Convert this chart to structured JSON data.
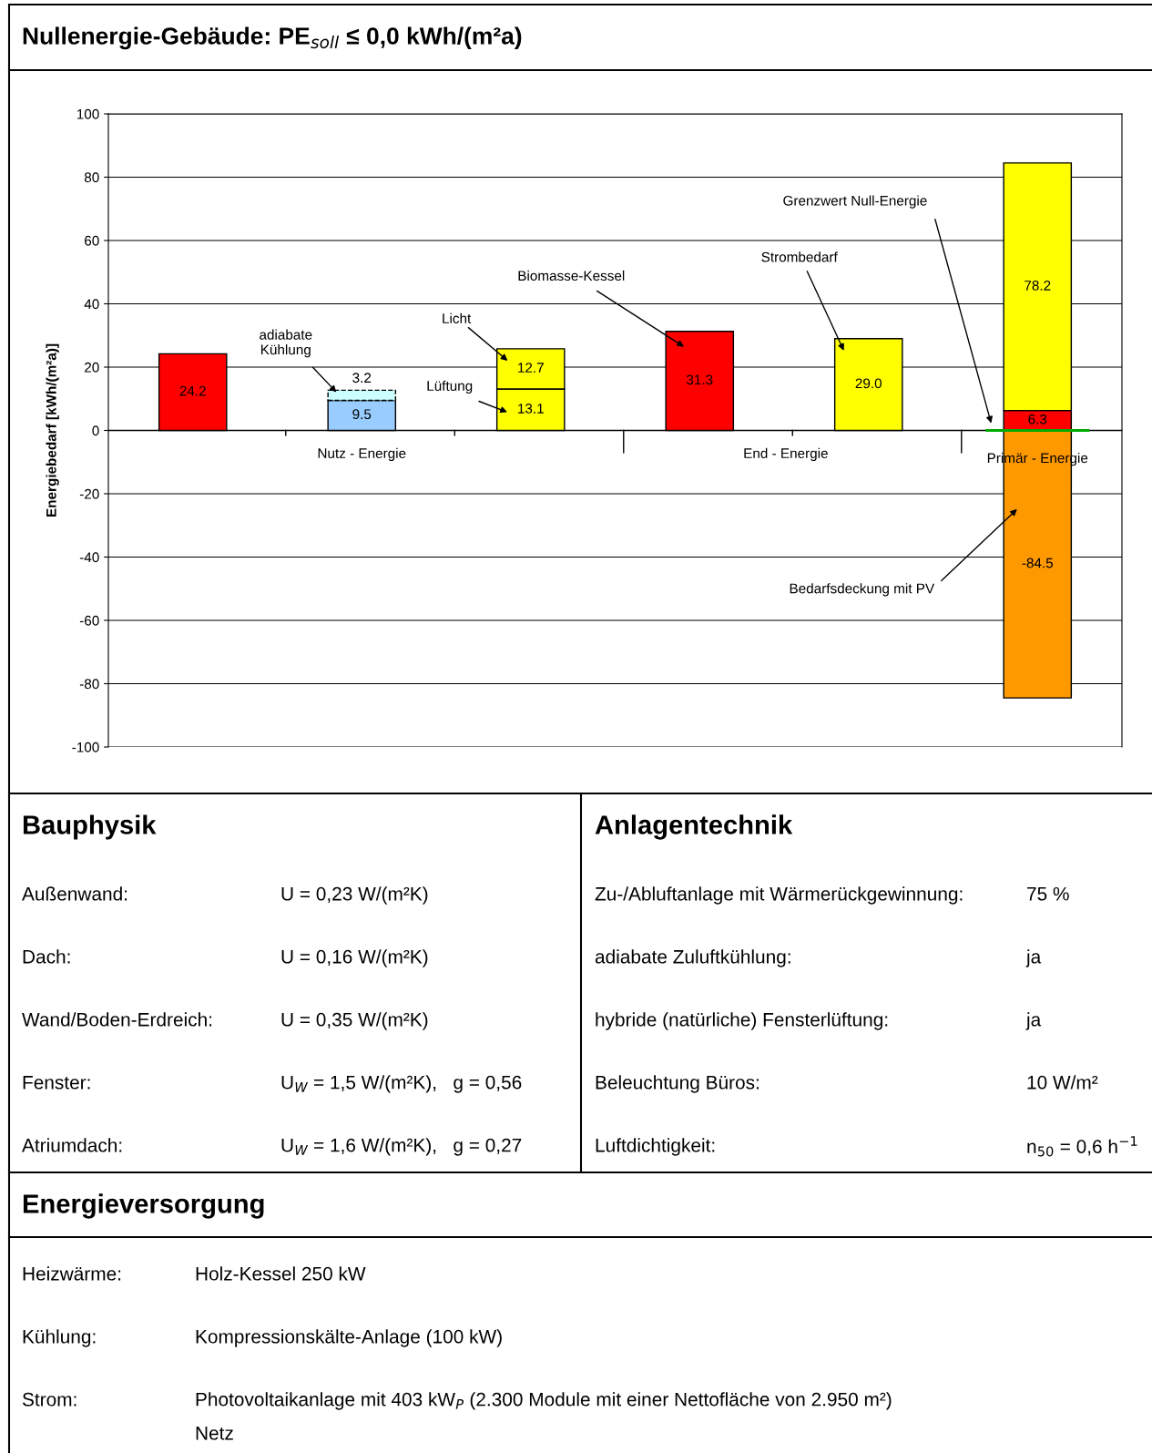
{
  "chart_data": [
    {
      "type": "bar",
      "title": "Nullenergie-Gebäude: PE$_{soll}$ ≤ 0,0 kWh/(m²a)",
      "ylabel": "Energiebedarf [kWh/(m²a)]",
      "categories": [
        null,
        null,
        null,
        null,
        null,
        null
      ],
      "stacked": true,
      "grid": "y",
      "ylim": [
        -100,
        100
      ],
      "yticks": [
        -100,
        -80,
        -60,
        -40,
        -20,
        0,
        20,
        40,
        60,
        80,
        100
      ],
      "series": [
        {
          "color": "#ff0000",
          "values": [
            24.2,
            null,
            null,
            31.3,
            null,
            6.3
          ],
          "value_labels": [
            "24.2",
            null,
            null,
            "31.3",
            null,
            "6.3"
          ]
        },
        {
          "color": "#99ccff",
          "values": [
            null,
            9.5,
            null,
            null,
            null,
            null
          ],
          "value_labels": [
            null,
            "9.5",
            null,
            null,
            null,
            null
          ]
        },
        {
          "color": "#ccffff",
          "line_style": "dashed",
          "values": [
            null,
            3.2,
            null,
            null,
            null,
            null
          ],
          "value_labels": [
            null,
            "3.2",
            null,
            null,
            null,
            null
          ]
        },
        {
          "color": "#ffff00",
          "values": [
            null,
            null,
            13.1,
            null,
            29.0,
            78.2
          ],
          "value_labels": [
            null,
            null,
            "13.1",
            null,
            "29.0",
            "78.2"
          ]
        },
        {
          "color": "#ffff00",
          "values": [
            null,
            null,
            12.7,
            null,
            null,
            null
          ],
          "value_labels": [
            null,
            null,
            "12.7",
            null,
            null,
            null
          ]
        },
        {
          "color": "#ff9900",
          "values": [
            null,
            null,
            null,
            null,
            null,
            -84.5
          ],
          "value_labels": [
            null,
            null,
            null,
            null,
            null,
            "-84.5"
          ]
        }
      ],
      "ref_lines": [
        {
          "axis": "y",
          "value": 0,
          "color": "#00aa00"
        }
      ],
      "annotations": [
        "Nutz - Energie",
        "End - Energie",
        "Primär - Energie",
        "adiabate\nKühlung",
        "Licht",
        "Lüftung",
        "Biomasse-Kessel",
        "Strombedarf",
        "Grenzwert Null-Energie",
        "Bedarfsdeckung mit PV"
      ]
    },
    {
      "type": "other",
      "title": "Bauphysik",
      "annotations": [
        "Außenwand:",
        "U = 0,23 W/(m²K)",
        "Dach:",
        "U = 0,16 W/(m²K)",
        "Wand/Boden-Erdreich:",
        "U = 0,35 W/(m²K)",
        "Fenster:",
        "U$_{W}$ = 1,5 W/(m²K),   g = 0,56",
        "Atriumdach:",
        "U$_{W}$ = 1,6 W/(m²K),   g = 0,27"
      ]
    },
    {
      "type": "other",
      "title": "Anlagentechnik",
      "annotations": [
        "Zu-/Abluftanlage mit Wärmerückgewinnung:",
        "75 %",
        "adiabate Zuluftkühlung:",
        "ja",
        "hybride (natürliche) Fensterlüftung:",
        "ja",
        "Beleuchtung Büros:",
        "10 W/m²",
        "Luftdichtigkeit:",
        "n$_{50}$ = 0,6 h$^{−1}$"
      ]
    },
    {
      "type": "other",
      "title": "Energieversorgung",
      "annotations": [
        "Heizwärme:",
        "Holz-Kessel 250 kW",
        "Kühlung:",
        "Kompressionskälte-Anlage (100 kW)",
        "Strom:",
        "Photovoltaikanlage mit 403 kW$_{P}$ (2.300 Module mit einer Nettofläche von 2.950 m²)",
        "Netz"
      ]
    }
  ]
}
